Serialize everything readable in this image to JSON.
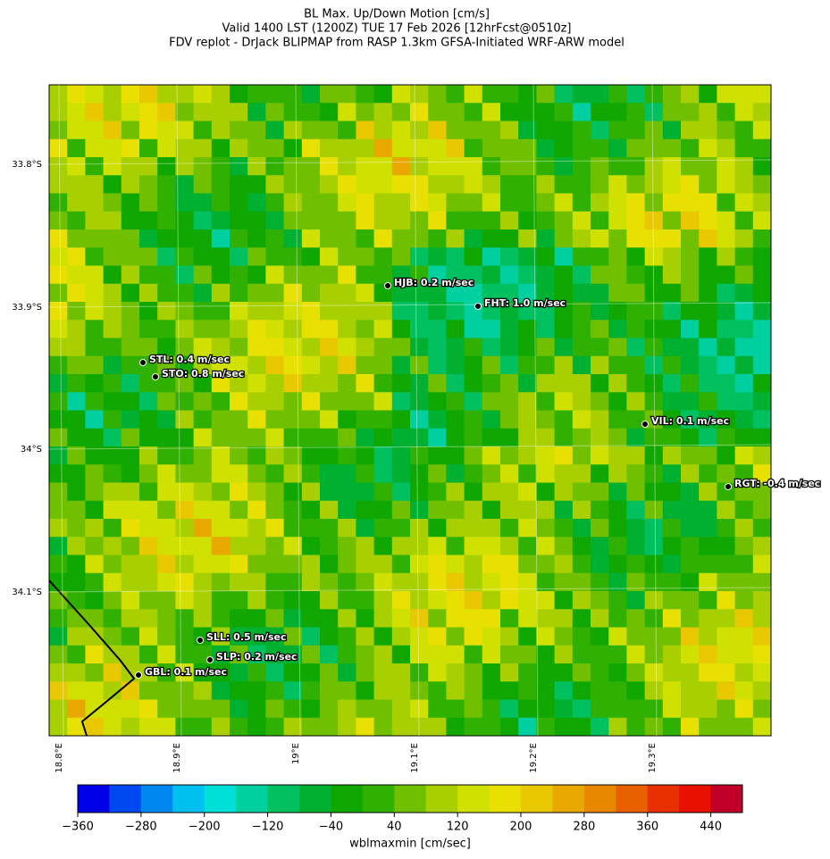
{
  "title": [
    "BL Max. Up/Down Motion [cm/s]",
    "Valid 1400 LST (1200Z) TUE 17 Feb 2026 [12hrFcst@0510z]",
    "FDV replot - DrJack BLIPMAP from RASP 1.3km GFSA-Initiated WRF-ARW model"
  ],
  "lat_labels": [
    "33.8°S",
    "33.9°S",
    "34°S",
    "34.1°S"
  ],
  "lon_labels": [
    "18.8°E",
    "18.9°E",
    "19°E",
    "19.1°E",
    "19.2°E",
    "19.3°E"
  ],
  "stations": [
    "HJB: 0.2 m/sec",
    "FHT: 1.0 m/sec",
    "STL: 0.4 m/sec",
    "STO: 0.8 m/sec",
    "VIL: 0.1 m/sec",
    "RGT: -0.4 m/sec",
    "SLL: 0.5 m/sec",
    "SLP: 0.2 m/sec",
    "GBL: 0.1 m/sec"
  ],
  "colorbar": {
    "label": "wblmaxmin [cm/sec]",
    "lim": [
      -360,
      480
    ],
    "ticks": [
      {
        "value": -360,
        "label": "−360"
      },
      {
        "value": -280,
        "label": "−280"
      },
      {
        "value": -200,
        "label": "−200"
      },
      {
        "value": -120,
        "label": "−120"
      },
      {
        "value": -40,
        "label": "−40"
      },
      40,
      120,
      200,
      280,
      360,
      440
    ],
    "colors": [
      "#0000e6",
      "#0048f0",
      "#0088f0",
      "#00c0f0",
      "#00e0d8",
      "#00d0a0",
      "#00c060",
      "#00b030",
      "#10a800",
      "#30b000",
      "#70c000",
      "#a8d000",
      "#d0e000",
      "#e8e000",
      "#e8c800",
      "#e8a800",
      "#e88800",
      "#e86000",
      "#e83000",
      "#e81000",
      "#c00028"
    ]
  }
}
